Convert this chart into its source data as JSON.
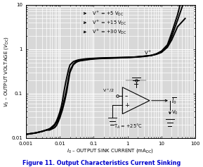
{
  "title": "Figure 11. Output Characteristics Current Sinking",
  "xlabel": "I₀ – OUTPUT SINK CURRENT (mAₚᴄ)",
  "ylabel": "V₀ – OUTPUT VOLTAGE (Vₚᴄ)",
  "xlim": [
    0.001,
    100
  ],
  "ylim": [
    0.01,
    10
  ],
  "background_color": "#ffffff",
  "plot_bg_color": "#d8d8d8",
  "grid_color": "#ffffff",
  "curve_color": "#000000",
  "title_color": "#0000cc",
  "curves": {
    "v5": {
      "x": [
        0.001,
        0.002,
        0.003,
        0.004,
        0.005,
        0.006,
        0.007,
        0.008,
        0.009,
        0.01,
        0.011,
        0.012,
        0.013,
        0.015,
        0.018,
        0.02,
        0.025,
        0.03,
        0.035,
        0.04,
        0.05,
        0.06,
        0.07,
        0.08,
        0.1,
        0.15,
        0.2,
        0.3,
        0.5,
        0.7,
        1.0,
        1.5,
        2.0,
        3.0,
        5.0,
        7.0,
        10.0,
        15.0,
        20.0,
        30.0,
        50.0
      ],
      "y": [
        0.012,
        0.013,
        0.014,
        0.015,
        0.016,
        0.018,
        0.02,
        0.024,
        0.03,
        0.038,
        0.05,
        0.068,
        0.1,
        0.18,
        0.34,
        0.44,
        0.52,
        0.55,
        0.57,
        0.58,
        0.595,
        0.605,
        0.61,
        0.615,
        0.62,
        0.63,
        0.635,
        0.64,
        0.645,
        0.65,
        0.655,
        0.66,
        0.67,
        0.69,
        0.72,
        0.76,
        0.84,
        1.1,
        1.6,
        3.2,
        4.9
      ]
    },
    "v15": {
      "x": [
        0.001,
        0.002,
        0.003,
        0.004,
        0.005,
        0.006,
        0.007,
        0.008,
        0.009,
        0.01,
        0.012,
        0.014,
        0.016,
        0.018,
        0.02,
        0.025,
        0.03,
        0.035,
        0.04,
        0.05,
        0.06,
        0.07,
        0.08,
        0.1,
        0.15,
        0.2,
        0.3,
        0.5,
        0.7,
        1.0,
        1.5,
        2.0,
        3.0,
        5.0,
        7.0,
        10.0,
        15.0,
        20.0,
        30.0,
        50.0
      ],
      "y": [
        0.012,
        0.013,
        0.014,
        0.015,
        0.016,
        0.017,
        0.019,
        0.022,
        0.026,
        0.033,
        0.05,
        0.08,
        0.13,
        0.22,
        0.33,
        0.46,
        0.52,
        0.545,
        0.558,
        0.57,
        0.583,
        0.592,
        0.6,
        0.61,
        0.62,
        0.625,
        0.63,
        0.64,
        0.645,
        0.65,
        0.66,
        0.67,
        0.69,
        0.72,
        0.77,
        0.87,
        1.15,
        1.9,
        4.5,
        14.0
      ]
    },
    "v30": {
      "x": [
        0.001,
        0.002,
        0.003,
        0.004,
        0.005,
        0.006,
        0.007,
        0.008,
        0.009,
        0.01,
        0.012,
        0.014,
        0.016,
        0.018,
        0.02,
        0.025,
        0.03,
        0.035,
        0.04,
        0.05,
        0.06,
        0.07,
        0.08,
        0.1,
        0.15,
        0.2,
        0.3,
        0.5,
        0.7,
        1.0,
        1.5,
        2.0,
        3.0,
        5.0,
        7.0,
        10.0,
        15.0,
        20.0,
        30.0,
        50.0
      ],
      "y": [
        0.012,
        0.013,
        0.014,
        0.015,
        0.015,
        0.016,
        0.017,
        0.019,
        0.023,
        0.028,
        0.043,
        0.068,
        0.11,
        0.19,
        0.3,
        0.44,
        0.5,
        0.53,
        0.544,
        0.558,
        0.57,
        0.58,
        0.588,
        0.597,
        0.61,
        0.616,
        0.622,
        0.63,
        0.638,
        0.645,
        0.655,
        0.665,
        0.68,
        0.72,
        0.78,
        0.9,
        1.25,
        2.3,
        6.0,
        28.0
      ]
    }
  }
}
